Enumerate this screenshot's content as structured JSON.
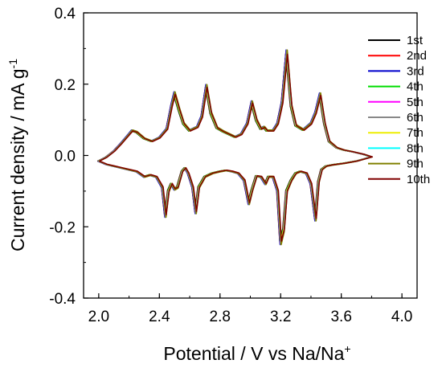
{
  "chart_data": {
    "type": "line",
    "title": "",
    "xlabel": "Potential / V vs Na/Na",
    "xlabel_sup": "+",
    "ylabel": "Current density / mA g",
    "ylabel_sup": "-1",
    "xlim": [
      1.9,
      4.1
    ],
    "ylim": [
      -0.4,
      0.4
    ],
    "xticks": [
      2.0,
      2.4,
      2.8,
      3.2,
      3.6,
      4.0
    ],
    "xtick_labels": [
      "2.0",
      "2.4",
      "2.8",
      "3.2",
      "3.6",
      "4.0"
    ],
    "yticks": [
      -0.4,
      -0.2,
      0.0,
      0.2,
      0.4
    ],
    "ytick_labels": [
      "-0.4",
      "-0.2",
      "0.0",
      "0.2",
      "0.4"
    ],
    "grid": false,
    "legend_position": "right",
    "series": [
      {
        "name": "1st",
        "color": "#000000"
      },
      {
        "name": "2nd",
        "color": "#ff0000"
      },
      {
        "name": "3rd",
        "color": "#0000cc"
      },
      {
        "name": "4th",
        "color": "#00dd00"
      },
      {
        "name": "5th",
        "color": "#ff00ff"
      },
      {
        "name": "6th",
        "color": "#888888"
      },
      {
        "name": "7th",
        "color": "#eeee00"
      },
      {
        "name": "8th",
        "color": "#00ffff"
      },
      {
        "name": "9th",
        "color": "#808000"
      },
      {
        "name": "10th",
        "color": "#800000"
      }
    ],
    "charge_branch": [
      [
        2.0,
        -0.016
      ],
      [
        2.05,
        -0.005
      ],
      [
        2.1,
        0.012
      ],
      [
        2.15,
        0.035
      ],
      [
        2.2,
        0.06
      ],
      [
        2.22,
        0.07
      ],
      [
        2.25,
        0.066
      ],
      [
        2.3,
        0.048
      ],
      [
        2.35,
        0.04
      ],
      [
        2.4,
        0.05
      ],
      [
        2.45,
        0.075
      ],
      [
        2.48,
        0.14
      ],
      [
        2.5,
        0.175
      ],
      [
        2.53,
        0.13
      ],
      [
        2.56,
        0.09
      ],
      [
        2.6,
        0.07
      ],
      [
        2.65,
        0.08
      ],
      [
        2.68,
        0.11
      ],
      [
        2.71,
        0.195
      ],
      [
        2.74,
        0.12
      ],
      [
        2.78,
        0.078
      ],
      [
        2.82,
        0.068
      ],
      [
        2.86,
        0.06
      ],
      [
        2.9,
        0.052
      ],
      [
        2.94,
        0.06
      ],
      [
        2.98,
        0.09
      ],
      [
        3.01,
        0.15
      ],
      [
        3.04,
        0.1
      ],
      [
        3.07,
        0.075
      ],
      [
        3.09,
        0.08
      ],
      [
        3.11,
        0.07
      ],
      [
        3.15,
        0.07
      ],
      [
        3.18,
        0.09
      ],
      [
        3.21,
        0.15
      ],
      [
        3.24,
        0.29
      ],
      [
        3.27,
        0.14
      ],
      [
        3.3,
        0.085
      ],
      [
        3.35,
        0.072
      ],
      [
        3.4,
        0.09
      ],
      [
        3.43,
        0.12
      ],
      [
        3.46,
        0.172
      ],
      [
        3.49,
        0.09
      ],
      [
        3.52,
        0.04
      ],
      [
        3.57,
        0.022
      ],
      [
        3.62,
        0.015
      ],
      [
        3.68,
        0.01
      ],
      [
        3.75,
        0.003
      ],
      [
        3.8,
        -0.004
      ]
    ],
    "discharge_branch": [
      [
        3.8,
        -0.004
      ],
      [
        3.7,
        -0.016
      ],
      [
        3.62,
        -0.022
      ],
      [
        3.55,
        -0.026
      ],
      [
        3.5,
        -0.03
      ],
      [
        3.47,
        -0.04
      ],
      [
        3.45,
        -0.075
      ],
      [
        3.43,
        -0.18
      ],
      [
        3.4,
        -0.08
      ],
      [
        3.37,
        -0.05
      ],
      [
        3.33,
        -0.045
      ],
      [
        3.3,
        -0.05
      ],
      [
        3.27,
        -0.07
      ],
      [
        3.24,
        -0.1
      ],
      [
        3.22,
        -0.21
      ],
      [
        3.2,
        -0.245
      ],
      [
        3.18,
        -0.1
      ],
      [
        3.15,
        -0.06
      ],
      [
        3.12,
        -0.06
      ],
      [
        3.1,
        -0.08
      ],
      [
        3.07,
        -0.06
      ],
      [
        3.04,
        -0.058
      ],
      [
        3.01,
        -0.1
      ],
      [
        2.99,
        -0.135
      ],
      [
        2.96,
        -0.07
      ],
      [
        2.92,
        -0.05
      ],
      [
        2.88,
        -0.045
      ],
      [
        2.84,
        -0.042
      ],
      [
        2.8,
        -0.045
      ],
      [
        2.75,
        -0.05
      ],
      [
        2.7,
        -0.06
      ],
      [
        2.66,
        -0.09
      ],
      [
        2.64,
        -0.16
      ],
      [
        2.62,
        -0.09
      ],
      [
        2.59,
        -0.05
      ],
      [
        2.57,
        -0.035
      ],
      [
        2.55,
        -0.045
      ],
      [
        2.52,
        -0.09
      ],
      [
        2.5,
        -0.095
      ],
      [
        2.48,
        -0.08
      ],
      [
        2.46,
        -0.1
      ],
      [
        2.44,
        -0.17
      ],
      [
        2.42,
        -0.09
      ],
      [
        2.38,
        -0.06
      ],
      [
        2.34,
        -0.055
      ],
      [
        2.3,
        -0.06
      ],
      [
        2.25,
        -0.045
      ],
      [
        2.2,
        -0.04
      ],
      [
        2.15,
        -0.035
      ],
      [
        2.1,
        -0.03
      ],
      [
        2.05,
        -0.025
      ],
      [
        2.0,
        -0.016
      ]
    ]
  }
}
